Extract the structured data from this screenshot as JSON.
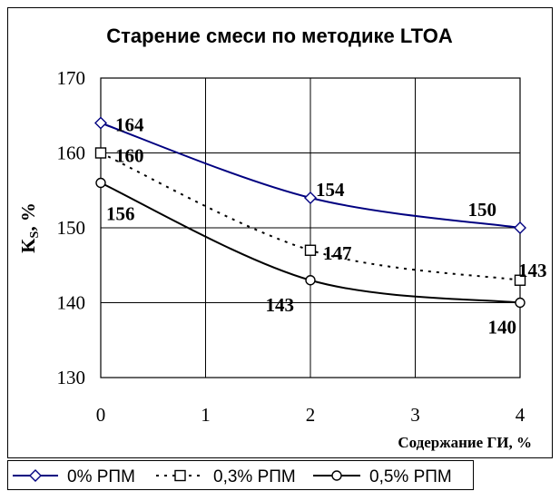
{
  "chart_data": {
    "type": "line",
    "title": "Старение смеси по методике LTOA",
    "xlabel": "Содержание ГИ, %",
    "ylabel": "Ks, %",
    "ylabel_main": "K",
    "ylabel_sub": "S",
    "ylabel_suffix": ", %",
    "xlim": [
      0,
      4
    ],
    "ylim": [
      130,
      170
    ],
    "x_ticks": [
      "0",
      "1",
      "2",
      "3",
      "4"
    ],
    "y_ticks": [
      "130",
      "140",
      "150",
      "160",
      "170"
    ],
    "grid": true,
    "legend_position": "bottom",
    "series": [
      {
        "name": "0% РПМ",
        "color": "#000080",
        "line_style": "solid",
        "marker": "diamond",
        "x": [
          0,
          2,
          4
        ],
        "y": [
          164,
          154,
          150
        ],
        "labels": [
          "164",
          "154",
          "150"
        ]
      },
      {
        "name": "0,3% РПМ",
        "color": "#000000",
        "line_style": "dotted",
        "marker": "square",
        "x": [
          0,
          2,
          4
        ],
        "y": [
          160,
          147,
          143
        ],
        "labels": [
          "160",
          "147",
          "143"
        ]
      },
      {
        "name": "0,5% РПМ",
        "color": "#000000",
        "line_style": "solid",
        "marker": "circle",
        "x": [
          0,
          2,
          4
        ],
        "y": [
          156,
          143,
          140
        ],
        "labels": [
          "156",
          "143",
          "140"
        ]
      }
    ]
  }
}
